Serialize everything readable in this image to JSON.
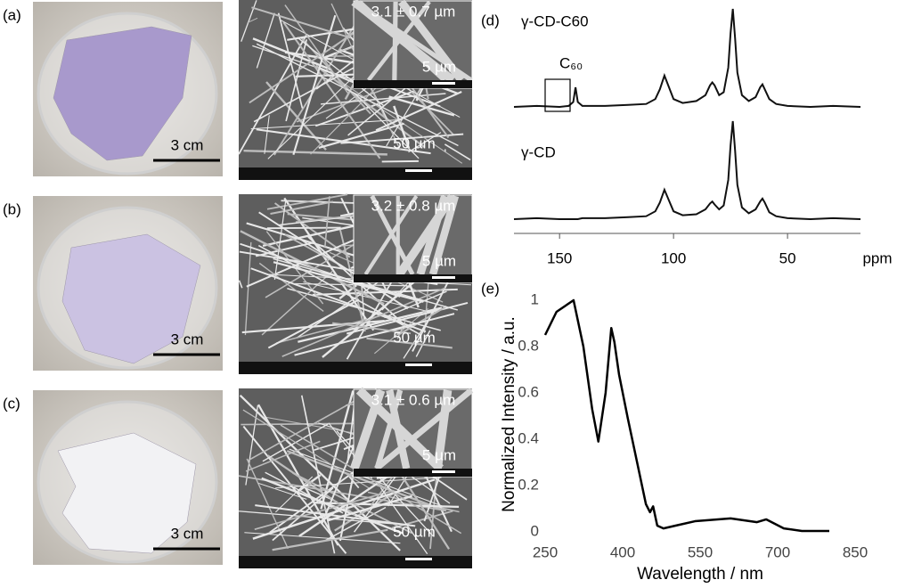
{
  "panels": [
    {
      "label": "(a)",
      "photo_scale": "3 cm",
      "inset_size": "3.1 ± 0.7 µm",
      "inset_scale": "5 µm",
      "sem_scale": "50 µm"
    },
    {
      "label": "(b)",
      "photo_scale": "3 cm",
      "inset_size": "3.2 ± 0.8 µm",
      "inset_scale": "5 µm",
      "sem_scale": "50 µm"
    },
    {
      "label": "(c)",
      "photo_scale": "3 cm",
      "inset_size": "3.1 ± 0.6 µm",
      "inset_scale": "5 µm",
      "sem_scale": "50 µm"
    }
  ],
  "chart_data": [
    {
      "type": "line",
      "label": "(d)",
      "annotation": "C₆₀",
      "xlabel": "ppm",
      "x": [
        170,
        160,
        150,
        146,
        144,
        143,
        142,
        140,
        130,
        120,
        112,
        108,
        106,
        104,
        102,
        100,
        96,
        90,
        86,
        84,
        83,
        82,
        80,
        78,
        76,
        75,
        74,
        73,
        72,
        70,
        67,
        64,
        62,
        61,
        60,
        58,
        55,
        50,
        40,
        30,
        18
      ],
      "series": [
        {
          "name": "γ-CD-C60",
          "color": "#111111",
          "values": [
            0,
            0.01,
            0,
            0.01,
            0.05,
            0.2,
            0.05,
            0.01,
            0.01,
            0.02,
            0.03,
            0.08,
            0.18,
            0.32,
            0.2,
            0.08,
            0.04,
            0.06,
            0.12,
            0.22,
            0.25,
            0.22,
            0.12,
            0.15,
            0.4,
            0.75,
            1.0,
            0.7,
            0.35,
            0.12,
            0.06,
            0.1,
            0.2,
            0.23,
            0.18,
            0.08,
            0.03,
            0.01,
            0,
            0.01,
            0
          ]
        },
        {
          "name": "γ-CD",
          "color": "#111111",
          "values": [
            0,
            0.01,
            0,
            0,
            0,
            0,
            0,
            0.01,
            0.01,
            0.02,
            0.03,
            0.08,
            0.17,
            0.3,
            0.19,
            0.08,
            0.04,
            0.05,
            0.1,
            0.16,
            0.18,
            0.15,
            0.1,
            0.14,
            0.4,
            0.75,
            1.0,
            0.7,
            0.35,
            0.12,
            0.06,
            0.1,
            0.18,
            0.21,
            0.17,
            0.07,
            0.03,
            0.01,
            0,
            0.01,
            0
          ]
        }
      ],
      "xlim": [
        170,
        18
      ],
      "xticks": [
        150,
        100,
        50
      ]
    },
    {
      "type": "line",
      "label": "(e)",
      "xlabel": "Wavelength / nm",
      "ylabel": "Normalized Intensity / a.u.",
      "color": "#000000",
      "x": [
        250,
        272,
        305,
        324,
        341,
        353,
        367,
        378,
        384,
        393,
        410,
        428,
        445,
        453,
        459,
        467,
        479,
        540,
        609,
        660,
        678,
        712,
        747,
        800
      ],
      "values": [
        0.85,
        0.95,
        1.0,
        0.8,
        0.53,
        0.39,
        0.6,
        0.88,
        0.82,
        0.68,
        0.49,
        0.3,
        0.12,
        0.085,
        0.11,
        0.027,
        0.015,
        0.046,
        0.058,
        0.042,
        0.054,
        0.015,
        0.004,
        0.004
      ],
      "xlim": [
        250,
        850
      ],
      "xticks": [
        250,
        400,
        550,
        700,
        850
      ],
      "ylim": [
        0,
        1
      ],
      "yticks": [
        0,
        0.2,
        0.4,
        0.6,
        0.8,
        1
      ]
    }
  ]
}
